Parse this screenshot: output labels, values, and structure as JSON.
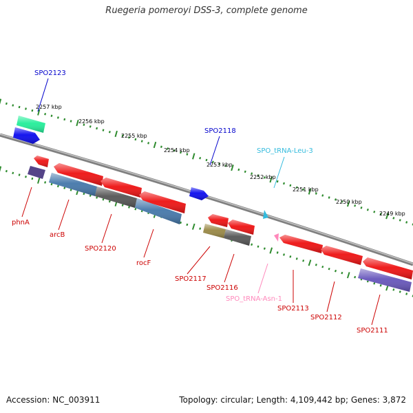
{
  "title": "Ruegeria pomeroyi DSS-3, complete genome",
  "footer": {
    "accession": "Accession: NC_003911",
    "summary": "Topology: circular; Length: 4,109,442 bp; Genes: 3,872"
  },
  "colors": {
    "backbone": "#8a8a8a",
    "tick": "#2e8b2e",
    "gene_forward_label": "#0000cc",
    "gene_reverse_label": "#cc0000",
    "trna_forward_label": "#33bbdd",
    "trna_reverse_label": "#ff88bb",
    "gene_red": "#ee1111",
    "gene_blue": "#0a0aee",
    "gene_teal": "#22ee99",
    "gene_purple": "#554488",
    "gene_steel": "#4477aa",
    "gene_gray": "#555555",
    "gene_olive": "#998844",
    "gene_violet": "#6655bb"
  },
  "scale": [
    {
      "label": "2257 kbp"
    },
    {
      "label": "2256 kbp"
    },
    {
      "label": "2255 kbp"
    },
    {
      "label": "2254 kbp"
    },
    {
      "label": "2253 kbp"
    },
    {
      "label": "2252 kbp"
    },
    {
      "label": "2251 kbp"
    },
    {
      "label": "2250 kbp"
    },
    {
      "label": "2249 kbp"
    }
  ],
  "labels": [
    {
      "text": "SPO2123",
      "strand": "forward"
    },
    {
      "text": "SPO2118",
      "strand": "forward"
    },
    {
      "text": "SPO_tRNA-Leu-3",
      "strand": "forward-trna"
    },
    {
      "text": "phnA",
      "strand": "reverse"
    },
    {
      "text": "arcB",
      "strand": "reverse"
    },
    {
      "text": "SPO2120",
      "strand": "reverse"
    },
    {
      "text": "rocF",
      "strand": "reverse"
    },
    {
      "text": "SPO2117",
      "strand": "reverse"
    },
    {
      "text": "SPO2116",
      "strand": "reverse"
    },
    {
      "text": "SPO_tRNA-Asn-1",
      "strand": "reverse-trna"
    },
    {
      "text": "SPO2113",
      "strand": "reverse"
    },
    {
      "text": "SPO2112",
      "strand": "reverse"
    },
    {
      "text": "SPO2111",
      "strand": "reverse"
    }
  ]
}
